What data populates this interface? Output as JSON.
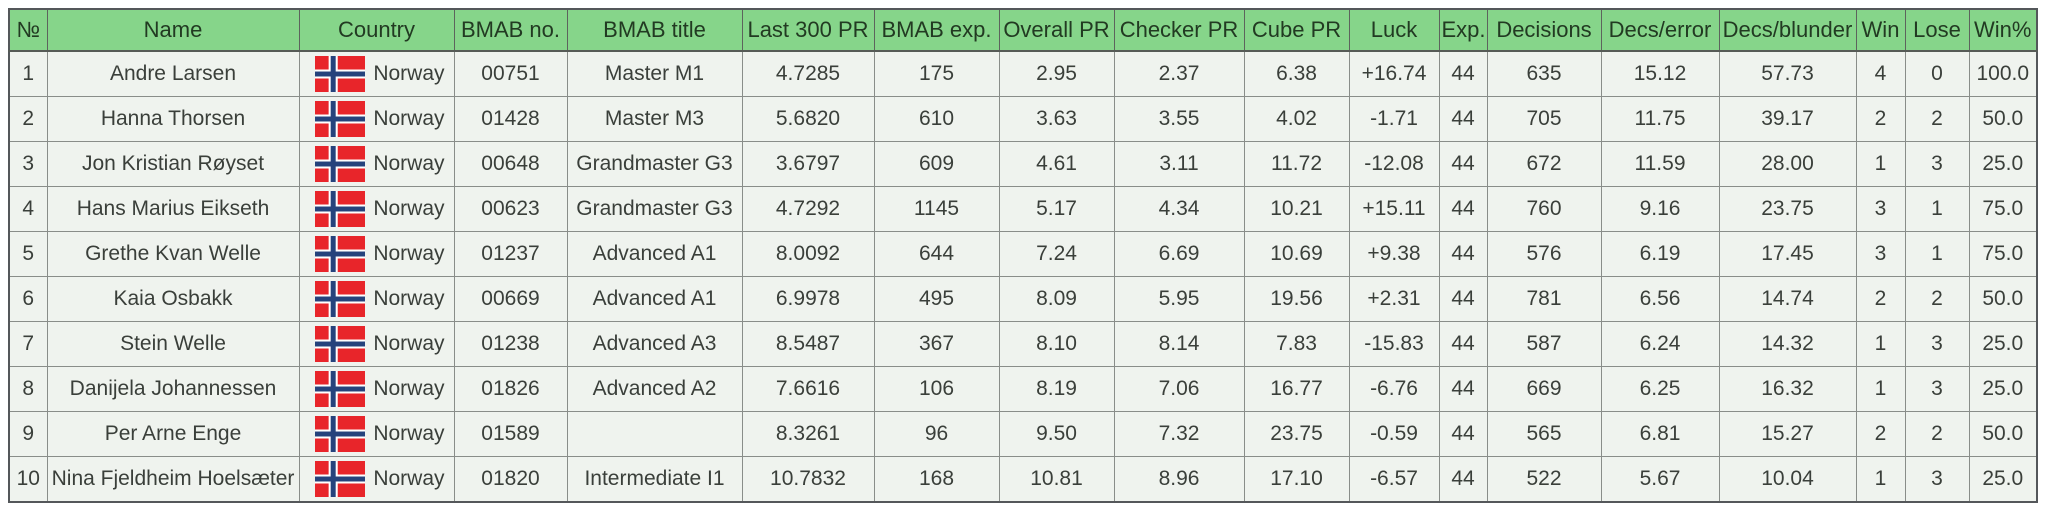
{
  "colors": {
    "header_bg": "#86d58a",
    "header_text": "#223a22",
    "row_bg": "#eff3ee",
    "body_text": "#3a3f3a",
    "outer_border": "#54575a",
    "inner_border": "#898d89",
    "flag_red": "#e8252a",
    "flag_blue": "#26437c",
    "flag_white": "#ffffff"
  },
  "table": {
    "columns": [
      {
        "key": "no",
        "label": "№"
      },
      {
        "key": "name",
        "label": "Name"
      },
      {
        "key": "country",
        "label": "Country"
      },
      {
        "key": "bmab_no",
        "label": "BMAB no."
      },
      {
        "key": "bmab_title",
        "label": "BMAB title"
      },
      {
        "key": "last300_pr",
        "label": "Last 300 PR"
      },
      {
        "key": "bmab_exp",
        "label": "BMAB exp."
      },
      {
        "key": "overall_pr",
        "label": "Overall PR"
      },
      {
        "key": "checker_pr",
        "label": "Checker PR"
      },
      {
        "key": "cube_pr",
        "label": "Cube PR"
      },
      {
        "key": "luck",
        "label": "Luck"
      },
      {
        "key": "exp",
        "label": "Exp."
      },
      {
        "key": "decisions",
        "label": "Decisions"
      },
      {
        "key": "decs_error",
        "label": "Decs/error"
      },
      {
        "key": "decs_blunder",
        "label": "Decs/blunder"
      },
      {
        "key": "win",
        "label": "Win"
      },
      {
        "key": "lose",
        "label": "Lose"
      },
      {
        "key": "win_pct",
        "label": "Win%"
      }
    ],
    "flag_icon": "norway-flag-icon",
    "rows": [
      {
        "no": "1",
        "name": "Andre Larsen",
        "country": "Norway",
        "bmab_no": "00751",
        "bmab_title": "Master M1",
        "last300_pr": "4.7285",
        "bmab_exp": "175",
        "overall_pr": "2.95",
        "checker_pr": "2.37",
        "cube_pr": "6.38",
        "luck": "+16.74",
        "exp": "44",
        "decisions": "635",
        "decs_error": "15.12",
        "decs_blunder": "57.73",
        "win": "4",
        "lose": "0",
        "win_pct": "100.0"
      },
      {
        "no": "2",
        "name": "Hanna Thorsen",
        "country": "Norway",
        "bmab_no": "01428",
        "bmab_title": "Master M3",
        "last300_pr": "5.6820",
        "bmab_exp": "610",
        "overall_pr": "3.63",
        "checker_pr": "3.55",
        "cube_pr": "4.02",
        "luck": "-1.71",
        "exp": "44",
        "decisions": "705",
        "decs_error": "11.75",
        "decs_blunder": "39.17",
        "win": "2",
        "lose": "2",
        "win_pct": "50.0"
      },
      {
        "no": "3",
        "name": "Jon Kristian Røyset",
        "country": "Norway",
        "bmab_no": "00648",
        "bmab_title": "Grandmaster G3",
        "last300_pr": "3.6797",
        "bmab_exp": "609",
        "overall_pr": "4.61",
        "checker_pr": "3.11",
        "cube_pr": "11.72",
        "luck": "-12.08",
        "exp": "44",
        "decisions": "672",
        "decs_error": "11.59",
        "decs_blunder": "28.00",
        "win": "1",
        "lose": "3",
        "win_pct": "25.0"
      },
      {
        "no": "4",
        "name": "Hans Marius Eikseth",
        "country": "Norway",
        "bmab_no": "00623",
        "bmab_title": "Grandmaster G3",
        "last300_pr": "4.7292",
        "bmab_exp": "1145",
        "overall_pr": "5.17",
        "checker_pr": "4.34",
        "cube_pr": "10.21",
        "luck": "+15.11",
        "exp": "44",
        "decisions": "760",
        "decs_error": "9.16",
        "decs_blunder": "23.75",
        "win": "3",
        "lose": "1",
        "win_pct": "75.0"
      },
      {
        "no": "5",
        "name": "Grethe Kvan Welle",
        "country": "Norway",
        "bmab_no": "01237",
        "bmab_title": "Advanced A1",
        "last300_pr": "8.0092",
        "bmab_exp": "644",
        "overall_pr": "7.24",
        "checker_pr": "6.69",
        "cube_pr": "10.69",
        "luck": "+9.38",
        "exp": "44",
        "decisions": "576",
        "decs_error": "6.19",
        "decs_blunder": "17.45",
        "win": "3",
        "lose": "1",
        "win_pct": "75.0"
      },
      {
        "no": "6",
        "name": "Kaia Osbakk",
        "country": "Norway",
        "bmab_no": "00669",
        "bmab_title": "Advanced A1",
        "last300_pr": "6.9978",
        "bmab_exp": "495",
        "overall_pr": "8.09",
        "checker_pr": "5.95",
        "cube_pr": "19.56",
        "luck": "+2.31",
        "exp": "44",
        "decisions": "781",
        "decs_error": "6.56",
        "decs_blunder": "14.74",
        "win": "2",
        "lose": "2",
        "win_pct": "50.0"
      },
      {
        "no": "7",
        "name": "Stein Welle",
        "country": "Norway",
        "bmab_no": "01238",
        "bmab_title": "Advanced A3",
        "last300_pr": "8.5487",
        "bmab_exp": "367",
        "overall_pr": "8.10",
        "checker_pr": "8.14",
        "cube_pr": "7.83",
        "luck": "-15.83",
        "exp": "44",
        "decisions": "587",
        "decs_error": "6.24",
        "decs_blunder": "14.32",
        "win": "1",
        "lose": "3",
        "win_pct": "25.0"
      },
      {
        "no": "8",
        "name": "Danijela Johannessen",
        "country": "Norway",
        "bmab_no": "01826",
        "bmab_title": "Advanced A2",
        "last300_pr": "7.6616",
        "bmab_exp": "106",
        "overall_pr": "8.19",
        "checker_pr": "7.06",
        "cube_pr": "16.77",
        "luck": "-6.76",
        "exp": "44",
        "decisions": "669",
        "decs_error": "6.25",
        "decs_blunder": "16.32",
        "win": "1",
        "lose": "3",
        "win_pct": "25.0"
      },
      {
        "no": "9",
        "name": "Per Arne Enge",
        "country": "Norway",
        "bmab_no": "01589",
        "bmab_title": "",
        "last300_pr": "8.3261",
        "bmab_exp": "96",
        "overall_pr": "9.50",
        "checker_pr": "7.32",
        "cube_pr": "23.75",
        "luck": "-0.59",
        "exp": "44",
        "decisions": "565",
        "decs_error": "6.81",
        "decs_blunder": "15.27",
        "win": "2",
        "lose": "2",
        "win_pct": "50.0"
      },
      {
        "no": "10",
        "name": "Nina Fjeldheim Hoelsæter",
        "country": "Norway",
        "bmab_no": "01820",
        "bmab_title": "Intermediate I1",
        "last300_pr": "10.7832",
        "bmab_exp": "168",
        "overall_pr": "10.81",
        "checker_pr": "8.96",
        "cube_pr": "17.10",
        "luck": "-6.57",
        "exp": "44",
        "decisions": "522",
        "decs_error": "5.67",
        "decs_blunder": "10.04",
        "win": "1",
        "lose": "3",
        "win_pct": "25.0"
      }
    ]
  }
}
